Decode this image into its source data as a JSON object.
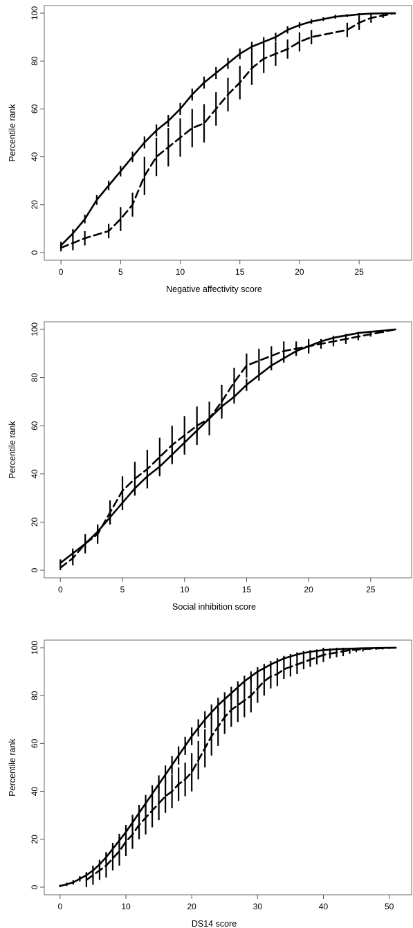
{
  "chart_data": [
    {
      "type": "line",
      "xlabel": "Negative affectivity score",
      "ylabel": "Percentile rank",
      "xlim": [
        0,
        28
      ],
      "ylim": [
        0,
        100
      ],
      "xticks": [
        0,
        5,
        10,
        15,
        20,
        25
      ],
      "yticks": [
        0,
        20,
        40,
        60,
        80,
        100
      ],
      "grid": false,
      "series": [
        {
          "style": "solid",
          "x": [
            0,
            1,
            2,
            3,
            4,
            5,
            6,
            7,
            8,
            9,
            10,
            11,
            12,
            13,
            14,
            15,
            16,
            17,
            18,
            19,
            20,
            21,
            22,
            23,
            24,
            25,
            26,
            27,
            28
          ],
          "y": [
            3,
            8,
            14,
            22,
            28,
            34,
            40,
            46,
            51,
            55,
            60,
            66,
            71,
            75,
            79,
            83,
            86,
            88,
            90,
            93,
            95,
            96.5,
            97.5,
            98.5,
            99,
            99.5,
            99.8,
            99.9,
            100
          ],
          "err": [
            1.5,
            1.8,
            1.8,
            2,
            2,
            2.2,
            2.2,
            2.5,
            2.5,
            2.5,
            2.5,
            2.5,
            2.5,
            2.5,
            2.3,
            2.2,
            2,
            2,
            1.8,
            1.5,
            1.2,
            1,
            0.8,
            0.8,
            0.6,
            0.5,
            0.4,
            0.3,
            0.2
          ]
        },
        {
          "style": "dashed",
          "x": [
            0,
            1,
            2,
            4,
            5,
            6,
            7,
            8,
            9,
            10,
            11,
            12,
            13,
            14,
            15,
            16,
            17,
            18,
            19,
            20,
            21,
            24,
            25,
            26,
            27,
            28
          ],
          "y": [
            2,
            4,
            6,
            9,
            14,
            20,
            32,
            40,
            44,
            48,
            52,
            54,
            60,
            66,
            71,
            77,
            81,
            83,
            85,
            88,
            90,
            93,
            96,
            98,
            99,
            100
          ],
          "err": [
            1.5,
            3,
            3,
            3,
            5,
            5,
            8,
            8,
            8,
            8,
            8,
            8,
            7,
            7,
            7,
            7,
            6,
            5,
            4,
            4,
            3,
            3,
            3,
            2,
            1,
            0.5
          ]
        }
      ]
    },
    {
      "type": "line",
      "xlabel": "Social inhibition score",
      "ylabel": "Percentile rank",
      "xlim": [
        0,
        27
      ],
      "ylim": [
        0,
        100
      ],
      "xticks": [
        0,
        5,
        10,
        15,
        20,
        25
      ],
      "yticks": [
        0,
        20,
        40,
        60,
        80,
        100
      ],
      "grid": false,
      "series": [
        {
          "style": "solid",
          "x": [
            0,
            1,
            2,
            3,
            4,
            5,
            6,
            7,
            8,
            9,
            10,
            11,
            12,
            13,
            14,
            15,
            16,
            17,
            18,
            19,
            20,
            21,
            22,
            23,
            24,
            25,
            26,
            27
          ],
          "y": [
            3,
            7,
            11,
            16,
            22,
            28,
            34,
            39,
            43,
            48,
            53,
            58,
            63,
            68,
            72,
            77,
            81,
            85,
            88,
            91,
            93,
            95,
            96.5,
            97.5,
            98.5,
            99,
            99.5,
            100
          ],
          "err": [
            1.5,
            2,
            2,
            2.5,
            3,
            3,
            3,
            3,
            3,
            3,
            3,
            3,
            3,
            3,
            2.8,
            2.5,
            2.3,
            2,
            1.8,
            1.5,
            1.2,
            1,
            0.8,
            0.6,
            0.5,
            0.4,
            0.3,
            0.2
          ]
        },
        {
          "style": "dashed",
          "x": [
            0,
            1,
            2,
            3,
            4,
            5,
            6,
            7,
            8,
            9,
            10,
            11,
            12,
            13,
            14,
            15,
            16,
            17,
            18,
            19,
            20,
            21,
            22,
            23,
            24,
            25,
            26,
            27
          ],
          "y": [
            1,
            5,
            11,
            15,
            24,
            33,
            38,
            42,
            47,
            52,
            56,
            60,
            63,
            70,
            78,
            85,
            87,
            89,
            91,
            92,
            93,
            94,
            95,
            96,
            97,
            98,
            99,
            100
          ],
          "err": [
            1,
            3,
            4,
            4,
            5,
            6,
            7,
            8,
            8,
            8,
            8,
            8,
            7,
            7,
            6,
            5,
            5,
            4,
            4,
            3,
            3,
            2,
            2,
            2,
            1.5,
            1,
            0.5,
            0.2
          ]
        }
      ]
    },
    {
      "type": "line",
      "xlabel": "DS14 score",
      "ylabel": "Percentile rank",
      "xlim": [
        0,
        51
      ],
      "ylim": [
        0,
        100
      ],
      "xticks": [
        0,
        10,
        20,
        30,
        40,
        50
      ],
      "yticks": [
        0,
        20,
        40,
        60,
        80,
        100
      ],
      "grid": false,
      "series": [
        {
          "style": "solid",
          "x": [
            0,
            1,
            2,
            3,
            4,
            5,
            6,
            7,
            8,
            9,
            10,
            11,
            12,
            13,
            14,
            15,
            16,
            17,
            18,
            19,
            20,
            21,
            22,
            23,
            24,
            25,
            26,
            27,
            28,
            29,
            30,
            31,
            32,
            33,
            34,
            35,
            36,
            37,
            38,
            39,
            40,
            41,
            42,
            43,
            44,
            45,
            46,
            47,
            48,
            49,
            50,
            51
          ],
          "y": [
            0.5,
            1.2,
            2,
            3.5,
            5,
            7,
            9.5,
            12.5,
            16,
            19.5,
            23,
            27,
            31,
            35,
            39,
            43,
            47,
            51,
            55,
            59,
            63,
            66.5,
            70,
            73,
            76,
            78.5,
            81,
            83.5,
            86,
            88,
            90,
            91.5,
            93,
            94.3,
            95.5,
            96.4,
            97.2,
            97.8,
            98.3,
            98.7,
            99,
            99.2,
            99.4,
            99.5,
            99.6,
            99.7,
            99.8,
            99.85,
            99.9,
            99.95,
            99.97,
            100
          ],
          "err": [
            0.5,
            0.7,
            0.9,
            1.1,
            1.3,
            1.6,
            1.9,
            2.2,
            2.5,
            2.8,
            3,
            3.2,
            3.4,
            3.5,
            3.6,
            3.7,
            3.8,
            3.8,
            3.8,
            3.8,
            3.7,
            3.6,
            3.5,
            3.3,
            3.1,
            2.9,
            2.7,
            2.5,
            2.3,
            2.1,
            1.9,
            1.7,
            1.5,
            1.3,
            1.1,
            1,
            0.9,
            0.8,
            0.7,
            0.6,
            0.5,
            0.5,
            0.4,
            0.4,
            0.3,
            0.3,
            0.3,
            0.2,
            0.2,
            0.2,
            0.2,
            0.1
          ]
        },
        {
          "style": "dashed",
          "x": [
            4,
            5,
            6,
            7,
            8,
            9,
            10,
            11,
            12,
            13,
            14,
            15,
            16,
            17,
            18,
            19,
            20,
            21,
            22,
            23,
            24,
            25,
            26,
            27,
            28,
            29,
            30,
            31,
            32,
            33,
            34,
            35,
            36,
            37,
            38,
            39,
            40,
            41,
            42,
            43,
            44,
            45,
            46,
            47,
            48,
            49,
            50,
            51
          ],
          "y": [
            3,
            5,
            7,
            9,
            12,
            15,
            19,
            22,
            26,
            29,
            32,
            35,
            38,
            40,
            43,
            45,
            48,
            53,
            58,
            63,
            67,
            71,
            74,
            76,
            78,
            80,
            83,
            86,
            88,
            89,
            91,
            92,
            93,
            94,
            95,
            96,
            97,
            97.5,
            98,
            98.5,
            99,
            99.2,
            99.4,
            99.6,
            99.7,
            99.8,
            99.9,
            100
          ],
          "err": [
            3,
            4,
            4,
            5,
            5,
            6,
            6,
            6,
            6,
            7,
            7,
            7,
            7,
            7,
            7,
            7,
            8,
            8,
            8,
            8,
            8,
            7,
            7,
            7,
            7,
            7,
            6,
            6,
            5,
            5,
            4,
            4,
            4,
            3,
            3,
            3,
            3,
            2,
            2,
            2,
            1.5,
            1,
            1,
            0.5,
            0.5,
            0.5,
            0.3,
            0.2
          ]
        }
      ]
    }
  ]
}
